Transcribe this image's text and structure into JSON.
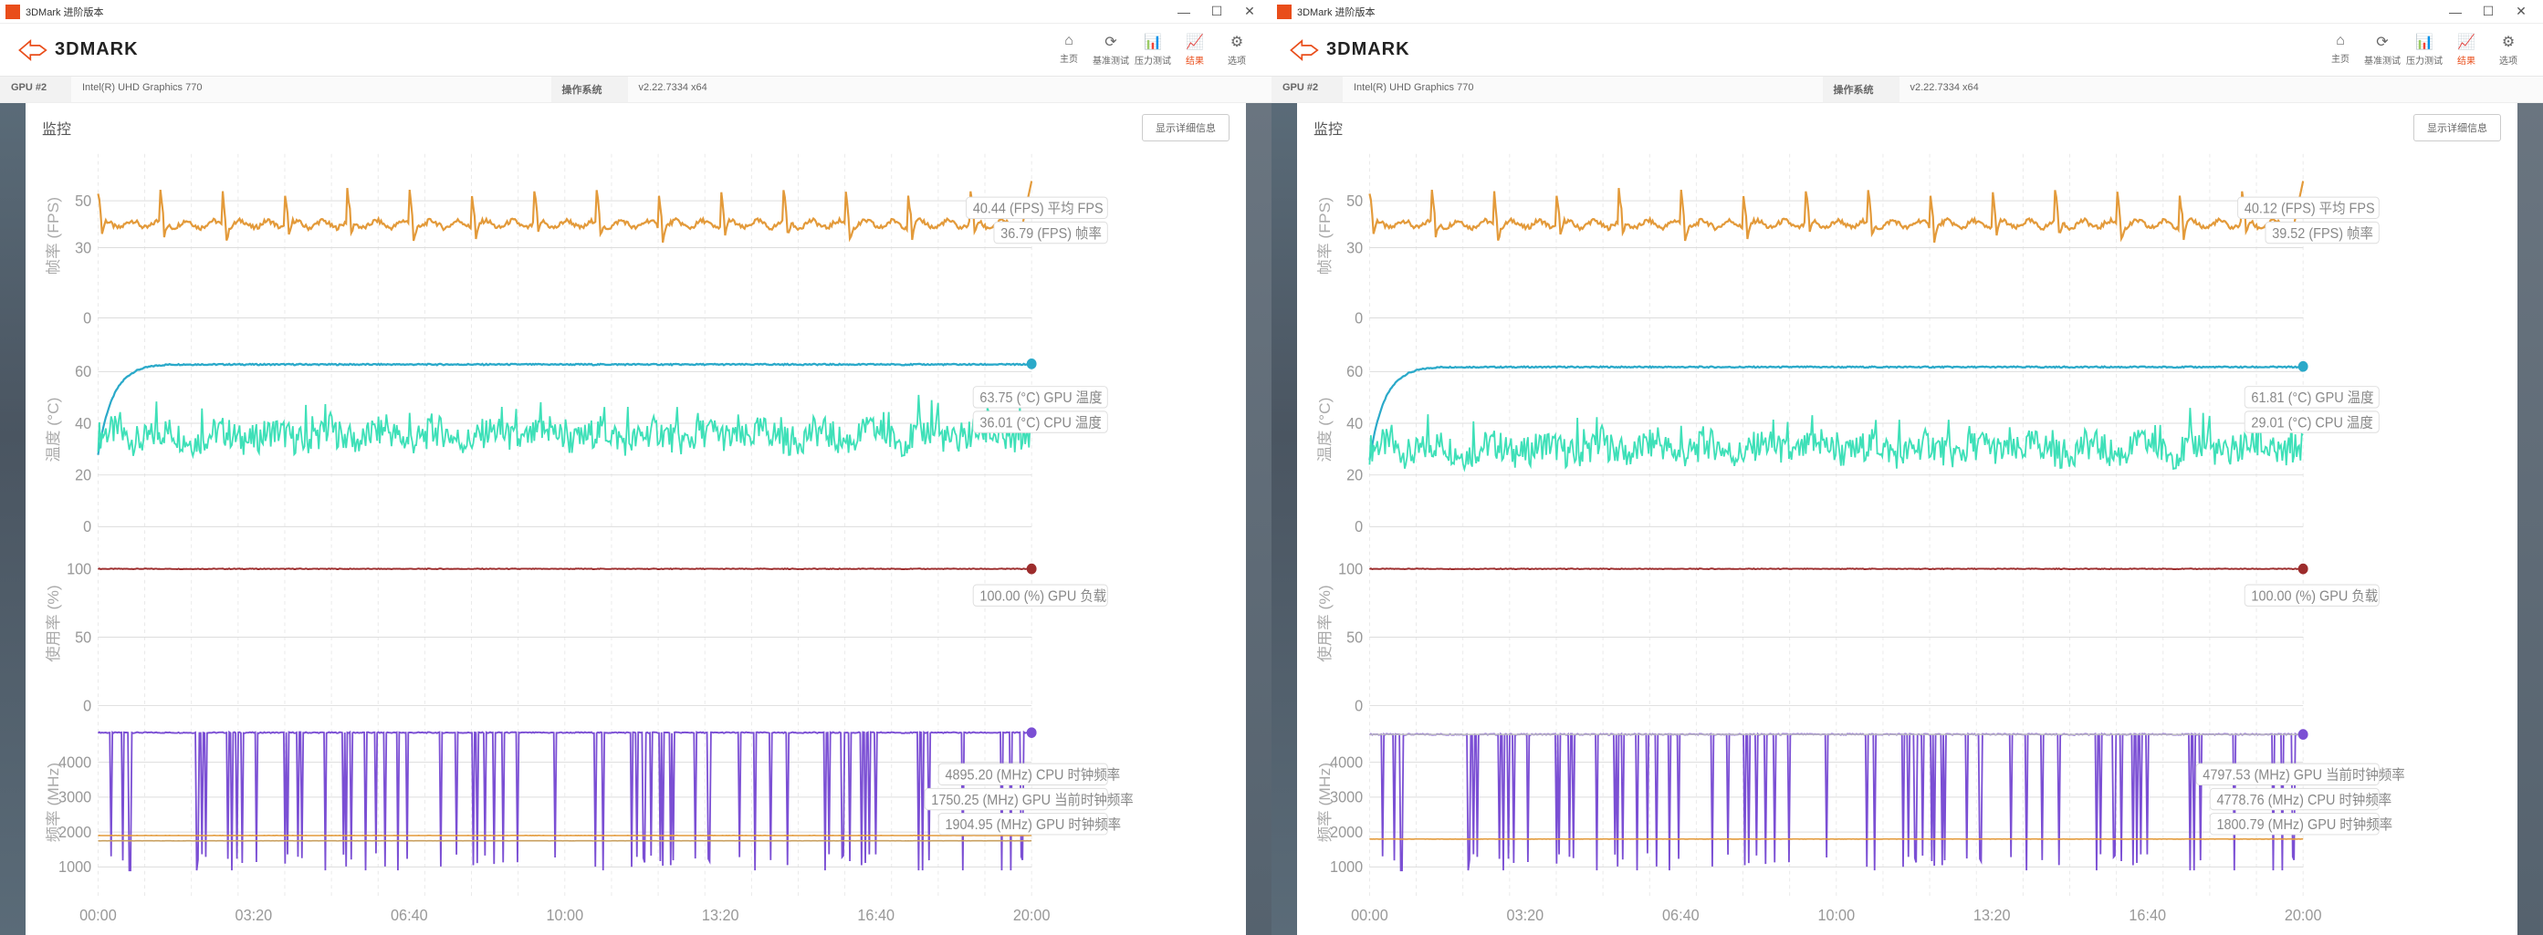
{
  "windows": [
    {
      "title": "3DMark 进阶版本",
      "brand": "3DMARK",
      "nav": [
        {
          "icon": "⌂",
          "label": "主页"
        },
        {
          "icon": "⟳",
          "label": "基准测试"
        },
        {
          "icon": "📊",
          "label": "压力测试"
        },
        {
          "icon": "📈",
          "label": "结果",
          "active": true
        },
        {
          "icon": "⚙",
          "label": "选项"
        }
      ],
      "gpu_label": "GPU #2",
      "gpu_name": "Intel(R) UHD Graphics 770",
      "op_label": "操作系统",
      "op_value": "v2.22.7334 x64",
      "monitor_label": "监控",
      "detail_btn": "显示详细信息",
      "time_axis": [
        "00:00",
        "03:20",
        "06:40",
        "10:00",
        "13:20",
        "16:40",
        "20:00"
      ],
      "panels": [
        {
          "ylabel": "帧率 (FPS)",
          "ticks": [
            0,
            30,
            50
          ],
          "ylim": [
            0,
            70
          ],
          "series": [
            {
              "color": "#e39a3a",
              "width": 1.2,
              "pattern": "fps",
              "base": 40,
              "amplitude": 14,
              "period": 48,
              "noise": 2
            },
            {
              "color": "#e39a3a",
              "width": 0,
              "pattern": "none"
            }
          ],
          "legends": [
            {
              "text": "40.44 (FPS) 平均 FPS",
              "color": "#e39a3a"
            },
            {
              "text": "36.79 (FPS) 帧率",
              "color": "#e39a3a"
            }
          ]
        },
        {
          "ylabel": "温度 (°C)",
          "ticks": [
            0,
            20,
            40,
            60
          ],
          "ylim": [
            0,
            75
          ],
          "series": [
            {
              "color": "#2aa9c9",
              "width": 1.2,
              "pattern": "rise-flat",
              "rise_to": 63,
              "start": 28,
              "noise": 0.5
            },
            {
              "color": "#3ee0b8",
              "width": 1.0,
              "pattern": "noise",
              "base": 35,
              "noise": 6
            }
          ],
          "legends": [
            {
              "text": "63.75 (°C) GPU 温度",
              "color": "#2aa9c9"
            },
            {
              "text": "36.01 (°C) CPU 温度",
              "color": "#3ee0b8"
            }
          ],
          "dots": [
            {
              "color": "#2aa9c9",
              "y": 63
            }
          ]
        },
        {
          "ylabel": "使用率 (%)",
          "ticks": [
            0,
            50,
            100
          ],
          "ylim": [
            0,
            120
          ],
          "series": [
            {
              "color": "#9c2c2c",
              "width": 1.0,
              "pattern": "flat",
              "base": 100,
              "noise": 0.5
            }
          ],
          "legends": [
            {
              "text": "100.00 (%) GPU 负载",
              "color": "#9c2c2c"
            }
          ],
          "dots": [
            {
              "color": "#9c2c2c",
              "y": 100
            }
          ]
        },
        {
          "ylabel": "频率 (MHz)",
          "ticks": [
            1000,
            2000,
            3000,
            4000
          ],
          "ylim": [
            500,
            5200
          ],
          "series": [
            {
              "color": "#7b4fd4",
              "width": 1.0,
              "pattern": "clock",
              "base": 4850,
              "drops_to": 1200,
              "noise": 30
            },
            {
              "color": "#e39a3a",
              "width": 0.8,
              "pattern": "flat",
              "base": 1900,
              "noise": 5
            },
            {
              "color": "#c9a060",
              "width": 0.8,
              "pattern": "flat",
              "base": 1750,
              "noise": 5
            }
          ],
          "legends": [
            {
              "text": "4895.20 (MHz) CPU 时钟频率",
              "color": "#7b4fd4"
            },
            {
              "text": "1750.25 (MHz) GPU 当前时钟频率",
              "color": "#c9a060"
            },
            {
              "text": "1904.95 (MHz) GPU 时钟频率",
              "color": "#e39a3a"
            }
          ],
          "dots": [
            {
              "color": "#7b4fd4",
              "y": 4850
            }
          ]
        }
      ]
    },
    {
      "title": "3DMark 进阶版本",
      "brand": "3DMARK",
      "nav": [
        {
          "icon": "⌂",
          "label": "主页"
        },
        {
          "icon": "⟳",
          "label": "基准测试"
        },
        {
          "icon": "📊",
          "label": "压力测试"
        },
        {
          "icon": "📈",
          "label": "结果",
          "active": true
        },
        {
          "icon": "⚙",
          "label": "选项"
        }
      ],
      "gpu_label": "GPU #2",
      "gpu_name": "Intel(R) UHD Graphics 770",
      "op_label": "操作系统",
      "op_value": "v2.22.7334 x64",
      "monitor_label": "监控",
      "detail_btn": "显示详细信息",
      "time_axis": [
        "00:00",
        "03:20",
        "06:40",
        "10:00",
        "13:20",
        "16:40",
        "20:00"
      ],
      "panels": [
        {
          "ylabel": "帧率 (FPS)",
          "ticks": [
            0,
            30,
            50
          ],
          "ylim": [
            0,
            70
          ],
          "series": [
            {
              "color": "#e39a3a",
              "width": 1.2,
              "pattern": "fps",
              "base": 40,
              "amplitude": 14,
              "period": 48,
              "noise": 2
            }
          ],
          "legends": [
            {
              "text": "40.12 (FPS) 平均 FPS",
              "color": "#e39a3a"
            },
            {
              "text": "39.52 (FPS) 帧率",
              "color": "#e39a3a"
            }
          ]
        },
        {
          "ylabel": "温度 (°C)",
          "ticks": [
            0,
            20,
            40,
            60
          ],
          "ylim": [
            0,
            75
          ],
          "series": [
            {
              "color": "#2aa9c9",
              "width": 1.2,
              "pattern": "rise-flat",
              "rise_to": 62,
              "start": 26,
              "noise": 0.5
            },
            {
              "color": "#3ee0b8",
              "width": 1.0,
              "pattern": "noise",
              "base": 30,
              "noise": 6
            }
          ],
          "legends": [
            {
              "text": "61.81 (°C) GPU 温度",
              "color": "#2aa9c9"
            },
            {
              "text": "29.01 (°C) CPU 温度",
              "color": "#3ee0b8"
            }
          ],
          "dots": [
            {
              "color": "#2aa9c9",
              "y": 62
            }
          ]
        },
        {
          "ylabel": "使用率 (%)",
          "ticks": [
            0,
            50,
            100
          ],
          "ylim": [
            0,
            120
          ],
          "series": [
            {
              "color": "#9c2c2c",
              "width": 1.0,
              "pattern": "flat",
              "base": 100,
              "noise": 0.5
            }
          ],
          "legends": [
            {
              "text": "100.00 (%) GPU 负载",
              "color": "#9c2c2c"
            }
          ],
          "dots": [
            {
              "color": "#9c2c2c",
              "y": 100
            }
          ]
        },
        {
          "ylabel": "频率 (MHz)",
          "ticks": [
            1000,
            2000,
            3000,
            4000
          ],
          "ylim": [
            500,
            5200
          ],
          "series": [
            {
              "color": "#7b4fd4",
              "width": 1.0,
              "pattern": "clock",
              "base": 4800,
              "drops_to": 1200,
              "noise": 30
            },
            {
              "color": "#c0c0c0",
              "width": 0.8,
              "pattern": "flat",
              "base": 4797,
              "noise": 3
            },
            {
              "color": "#e39a3a",
              "width": 0.8,
              "pattern": "flat",
              "base": 1800,
              "noise": 5
            }
          ],
          "legends": [
            {
              "text": "4797.53 (MHz) GPU 当前时钟频率",
              "color": "#c0c0c0"
            },
            {
              "text": "4778.76 (MHz) CPU 时钟频率",
              "color": "#7b4fd4"
            },
            {
              "text": "1800.79 (MHz) GPU 时钟频率",
              "color": "#e39a3a"
            }
          ],
          "dots": [
            {
              "color": "#7b4fd4",
              "y": 4800
            }
          ]
        }
      ]
    }
  ],
  "chart_style": {
    "bg": "#ffffff",
    "grid_color": "#dddddd",
    "minor_grid_color": "#e8e8e8",
    "axis_font": 9,
    "panel_heights": [
      0.22,
      0.26,
      0.22,
      0.22
    ],
    "panel_gap": 0.02,
    "npoints": 720,
    "nminor": 20
  }
}
